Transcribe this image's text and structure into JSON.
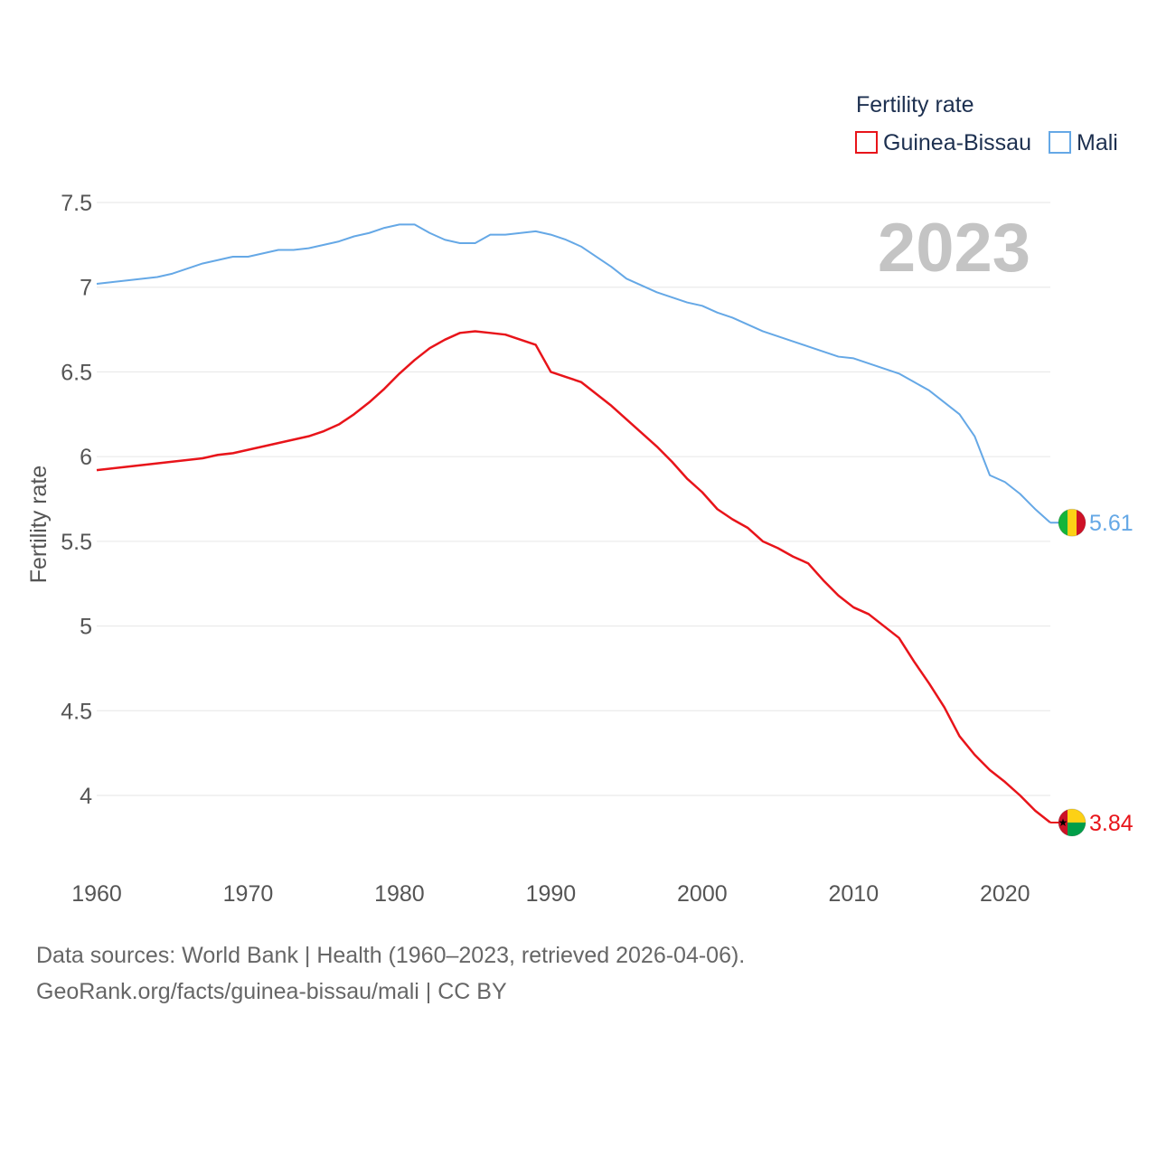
{
  "chart_data": {
    "type": "line",
    "legend_title": "Fertility rate",
    "ylabel": "Fertility rate",
    "year_label": "2023",
    "xlim": [
      1960,
      2023
    ],
    "ylim": [
      3.6,
      7.55
    ],
    "x_ticks": [
      1960,
      1970,
      1980,
      1990,
      2000,
      2010,
      2020
    ],
    "y_ticks": [
      4,
      4.5,
      5,
      5.5,
      6,
      6.5,
      7,
      7.5
    ],
    "y_tick_labels": [
      "4",
      "4.5",
      "5",
      "5.5",
      "6",
      "6.5",
      "7",
      "7.5"
    ],
    "grid": true,
    "legend_position": "top-right",
    "x": [
      1960,
      1961,
      1962,
      1963,
      1964,
      1965,
      1966,
      1967,
      1968,
      1969,
      1970,
      1971,
      1972,
      1973,
      1974,
      1975,
      1976,
      1977,
      1978,
      1979,
      1980,
      1981,
      1982,
      1983,
      1984,
      1985,
      1986,
      1987,
      1988,
      1989,
      1990,
      1991,
      1992,
      1993,
      1994,
      1995,
      1996,
      1997,
      1998,
      1999,
      2000,
      2001,
      2002,
      2003,
      2004,
      2005,
      2006,
      2007,
      2008,
      2009,
      2010,
      2011,
      2012,
      2013,
      2014,
      2015,
      2016,
      2017,
      2018,
      2019,
      2020,
      2021,
      2022,
      2023
    ],
    "series": [
      {
        "name": "Guinea-Bissau",
        "color": "#e8141a",
        "end_label": "3.84",
        "values": [
          5.92,
          5.93,
          5.94,
          5.95,
          5.96,
          5.97,
          5.98,
          5.99,
          6.01,
          6.02,
          6.04,
          6.06,
          6.08,
          6.1,
          6.12,
          6.15,
          6.19,
          6.25,
          6.32,
          6.4,
          6.49,
          6.57,
          6.64,
          6.69,
          6.73,
          6.74,
          6.73,
          6.72,
          6.69,
          6.66,
          6.5,
          6.47,
          6.44,
          6.37,
          6.3,
          6.22,
          6.14,
          6.06,
          5.97,
          5.87,
          5.79,
          5.69,
          5.63,
          5.58,
          5.5,
          5.46,
          5.41,
          5.37,
          5.27,
          5.18,
          5.11,
          5.07,
          5.0,
          4.93,
          4.79,
          4.66,
          4.52,
          4.35,
          4.24,
          4.15,
          4.08,
          4.0,
          3.91,
          3.84
        ]
      },
      {
        "name": "Mali",
        "color": "#65a8e6",
        "end_label": "5.61",
        "values": [
          7.02,
          7.03,
          7.04,
          7.05,
          7.06,
          7.08,
          7.11,
          7.14,
          7.16,
          7.18,
          7.18,
          7.2,
          7.22,
          7.22,
          7.23,
          7.25,
          7.27,
          7.3,
          7.32,
          7.35,
          7.37,
          7.37,
          7.32,
          7.28,
          7.26,
          7.26,
          7.31,
          7.31,
          7.32,
          7.33,
          7.31,
          7.28,
          7.24,
          7.18,
          7.12,
          7.05,
          7.01,
          6.97,
          6.94,
          6.91,
          6.89,
          6.85,
          6.82,
          6.78,
          6.74,
          6.71,
          6.68,
          6.65,
          6.62,
          6.59,
          6.58,
          6.55,
          6.52,
          6.49,
          6.44,
          6.39,
          6.32,
          6.25,
          6.12,
          5.89,
          5.85,
          5.78,
          5.69,
          5.61
        ]
      }
    ]
  },
  "footer": {
    "sources": "Data sources: World Bank | Health (1960–2023, retrieved 2026-04-06).",
    "url": "GeoRank.org/facts/guinea-bissau/mali | CC BY"
  }
}
